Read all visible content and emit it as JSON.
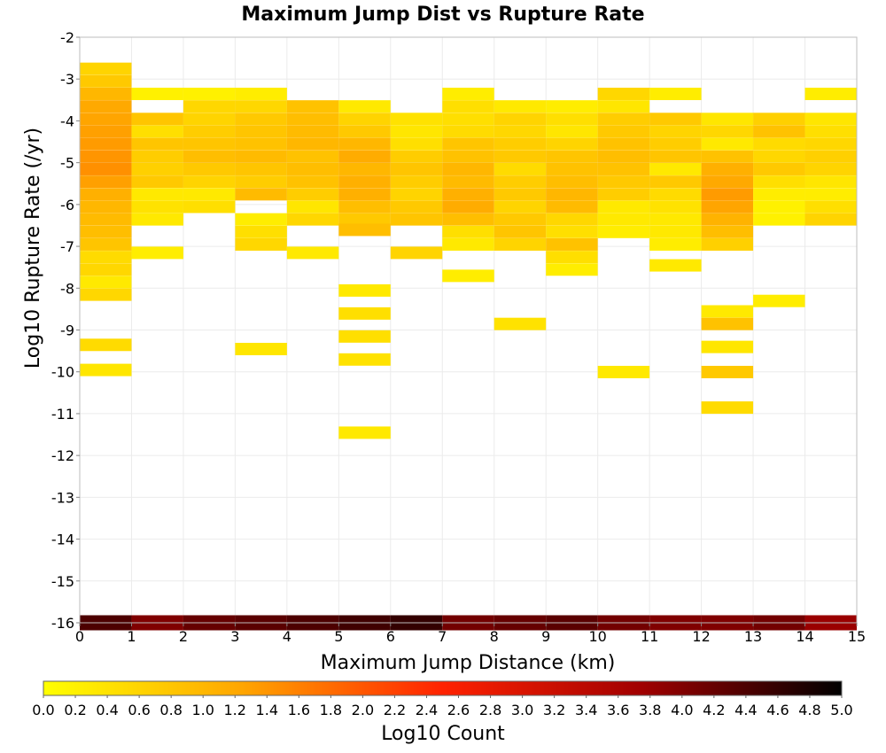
{
  "chart_data": {
    "type": "heatmap",
    "title": "Maximum Jump Dist vs Rupture Rate",
    "xlabel": "Maximum Jump Distance (km)",
    "ylabel": "Log10 Rupture Rate (/yr)",
    "xlim": [
      0,
      15
    ],
    "ylim": [
      -16,
      -2
    ],
    "x_ticks": [
      "0",
      "1",
      "2",
      "3",
      "4",
      "5",
      "6",
      "7",
      "8",
      "9",
      "10",
      "11",
      "12",
      "13",
      "14",
      "15"
    ],
    "y_ticks": [
      "-2",
      "-3",
      "-4",
      "-5",
      "-6",
      "-7",
      "-8",
      "-9",
      "-10",
      "-11",
      "-12",
      "-13",
      "-14",
      "-15",
      "-16"
    ],
    "grid": true,
    "colorbar": {
      "label": "Log10 Count",
      "min": 0.0,
      "max": 5.0,
      "ticks": [
        "0.0",
        "0.2",
        "0.4",
        "0.6",
        "0.8",
        "1.0",
        "1.2",
        "1.4",
        "1.6",
        "1.8",
        "2.0",
        "2.2",
        "2.4",
        "2.6",
        "2.8",
        "3.0",
        "3.2",
        "3.4",
        "3.6",
        "3.8",
        "4.0",
        "4.2",
        "4.4",
        "4.6",
        "4.8",
        "5.0"
      ],
      "stops": [
        "#ffff00",
        "#ffa500",
        "#ff2200",
        "#a00000",
        "#000000"
      ]
    },
    "x_bin_width": 1,
    "y_bin_height": 0.2857,
    "bins": [
      [
        0,
        -2.75,
        0.6
      ],
      [
        0,
        -3.05,
        0.75
      ],
      [
        0,
        -3.35,
        1.0
      ],
      [
        0,
        -3.65,
        1.2
      ],
      [
        0,
        -3.95,
        1.25
      ],
      [
        0,
        -4.25,
        1.3
      ],
      [
        0,
        -4.55,
        1.35
      ],
      [
        0,
        -4.85,
        1.4
      ],
      [
        0,
        -5.15,
        1.45
      ],
      [
        0,
        -5.45,
        1.3
      ],
      [
        0,
        -5.75,
        1.1
      ],
      [
        0,
        -6.05,
        1.0
      ],
      [
        0,
        -6.35,
        0.95
      ],
      [
        0,
        -6.65,
        0.9
      ],
      [
        0,
        -6.95,
        0.8
      ],
      [
        0,
        -7.25,
        0.5
      ],
      [
        0,
        -7.55,
        0.55
      ],
      [
        0,
        -7.85,
        0.3
      ],
      [
        0,
        -8.15,
        0.55
      ],
      [
        0,
        -9.35,
        0.5
      ],
      [
        0,
        -9.95,
        0.35
      ],
      [
        1,
        -3.35,
        0.2
      ],
      [
        1,
        -3.95,
        0.8
      ],
      [
        1,
        -4.25,
        0.45
      ],
      [
        1,
        -4.55,
        0.8
      ],
      [
        1,
        -4.85,
        0.7
      ],
      [
        1,
        -5.15,
        0.65
      ],
      [
        1,
        -5.45,
        0.75
      ],
      [
        1,
        -5.75,
        0.3
      ],
      [
        1,
        -6.05,
        0.4
      ],
      [
        1,
        -6.35,
        0.3
      ],
      [
        1,
        -7.15,
        0.25
      ],
      [
        2,
        -3.35,
        0.2
      ],
      [
        2,
        -3.65,
        0.55
      ],
      [
        2,
        -3.95,
        0.6
      ],
      [
        2,
        -4.25,
        0.7
      ],
      [
        2,
        -4.55,
        0.8
      ],
      [
        2,
        -4.85,
        0.9
      ],
      [
        2,
        -5.15,
        0.75
      ],
      [
        2,
        -5.45,
        0.6
      ],
      [
        2,
        -5.75,
        0.3
      ],
      [
        2,
        -6.05,
        0.45
      ],
      [
        3,
        -3.35,
        0.25
      ],
      [
        3,
        -3.65,
        0.55
      ],
      [
        3,
        -3.95,
        0.75
      ],
      [
        3,
        -4.25,
        0.8
      ],
      [
        3,
        -4.55,
        0.85
      ],
      [
        3,
        -4.85,
        0.95
      ],
      [
        3,
        -5.15,
        0.8
      ],
      [
        3,
        -5.45,
        0.7
      ],
      [
        3,
        -5.75,
        0.95
      ],
      [
        3,
        -6.35,
        0.25
      ],
      [
        3,
        -6.65,
        0.45
      ],
      [
        3,
        -6.95,
        0.55
      ],
      [
        3,
        -9.45,
        0.35
      ],
      [
        4,
        -3.65,
        0.85
      ],
      [
        4,
        -3.95,
        0.9
      ],
      [
        4,
        -4.25,
        0.95
      ],
      [
        4,
        -4.55,
        1.0
      ],
      [
        4,
        -4.85,
        0.85
      ],
      [
        4,
        -5.15,
        0.9
      ],
      [
        4,
        -5.45,
        0.85
      ],
      [
        4,
        -5.75,
        0.7
      ],
      [
        4,
        -6.05,
        0.35
      ],
      [
        4,
        -6.35,
        0.55
      ],
      [
        4,
        -7.15,
        0.3
      ],
      [
        5,
        -3.65,
        0.3
      ],
      [
        5,
        -3.95,
        0.6
      ],
      [
        5,
        -4.25,
        0.75
      ],
      [
        5,
        -4.55,
        1.0
      ],
      [
        5,
        -4.85,
        1.15
      ],
      [
        5,
        -5.15,
        1.0
      ],
      [
        5,
        -5.45,
        1.1
      ],
      [
        5,
        -5.75,
        1.1
      ],
      [
        5,
        -6.05,
        0.9
      ],
      [
        5,
        -6.35,
        0.75
      ],
      [
        5,
        -6.6,
        0.9
      ],
      [
        5,
        -8.05,
        0.3
      ],
      [
        5,
        -8.6,
        0.45
      ],
      [
        5,
        -9.15,
        0.45
      ],
      [
        5,
        -9.7,
        0.4
      ],
      [
        5,
        -11.45,
        0.3
      ],
      [
        6,
        -3.95,
        0.4
      ],
      [
        6,
        -4.25,
        0.35
      ],
      [
        6,
        -4.55,
        0.45
      ],
      [
        6,
        -4.85,
        0.7
      ],
      [
        6,
        -5.15,
        0.8
      ],
      [
        6,
        -5.45,
        0.7
      ],
      [
        6,
        -5.75,
        0.6
      ],
      [
        6,
        -6.05,
        0.75
      ],
      [
        6,
        -6.35,
        0.8
      ],
      [
        6,
        -7.15,
        0.6
      ],
      [
        7,
        -3.35,
        0.25
      ],
      [
        7,
        -3.65,
        0.45
      ],
      [
        7,
        -3.95,
        0.45
      ],
      [
        7,
        -4.25,
        0.5
      ],
      [
        7,
        -4.55,
        0.8
      ],
      [
        7,
        -4.85,
        0.85
      ],
      [
        7,
        -5.15,
        1.0
      ],
      [
        7,
        -5.45,
        0.95
      ],
      [
        7,
        -5.75,
        1.1
      ],
      [
        7,
        -6.05,
        1.15
      ],
      [
        7,
        -6.35,
        0.9
      ],
      [
        7,
        -6.65,
        0.45
      ],
      [
        7,
        -6.95,
        0.3
      ],
      [
        7,
        -7.7,
        0.25
      ],
      [
        8,
        -3.65,
        0.3
      ],
      [
        8,
        -3.95,
        0.6
      ],
      [
        8,
        -4.25,
        0.55
      ],
      [
        8,
        -4.55,
        0.7
      ],
      [
        8,
        -4.85,
        0.75
      ],
      [
        8,
        -5.15,
        0.5
      ],
      [
        8,
        -5.45,
        0.7
      ],
      [
        8,
        -5.75,
        0.75
      ],
      [
        8,
        -6.05,
        0.6
      ],
      [
        8,
        -6.35,
        0.75
      ],
      [
        8,
        -6.65,
        0.8
      ],
      [
        8,
        -6.95,
        0.6
      ],
      [
        8,
        -8.85,
        0.4
      ],
      [
        9,
        -3.65,
        0.25
      ],
      [
        9,
        -3.95,
        0.45
      ],
      [
        9,
        -4.25,
        0.35
      ],
      [
        9,
        -4.55,
        0.6
      ],
      [
        9,
        -4.85,
        0.8
      ],
      [
        9,
        -5.15,
        0.85
      ],
      [
        9,
        -5.45,
        0.9
      ],
      [
        9,
        -5.75,
        1.0
      ],
      [
        9,
        -6.05,
        0.95
      ],
      [
        9,
        -6.35,
        0.55
      ],
      [
        9,
        -6.65,
        0.45
      ],
      [
        9,
        -6.95,
        0.85
      ],
      [
        9,
        -7.25,
        0.45
      ],
      [
        9,
        -7.55,
        0.25
      ],
      [
        10,
        -3.35,
        0.55
      ],
      [
        10,
        -3.65,
        0.35
      ],
      [
        10,
        -3.95,
        0.7
      ],
      [
        10,
        -4.25,
        0.75
      ],
      [
        10,
        -4.55,
        0.85
      ],
      [
        10,
        -4.85,
        0.9
      ],
      [
        10,
        -5.15,
        0.85
      ],
      [
        10,
        -5.45,
        0.75
      ],
      [
        10,
        -5.75,
        0.7
      ],
      [
        10,
        -6.05,
        0.3
      ],
      [
        10,
        -6.35,
        0.3
      ],
      [
        10,
        -6.65,
        0.25
      ],
      [
        10,
        -10.0,
        0.3
      ],
      [
        11,
        -3.35,
        0.25
      ],
      [
        11,
        -3.95,
        0.75
      ],
      [
        11,
        -4.25,
        0.6
      ],
      [
        11,
        -4.55,
        0.7
      ],
      [
        11,
        -4.85,
        0.8
      ],
      [
        11,
        -5.15,
        0.3
      ],
      [
        11,
        -5.45,
        0.75
      ],
      [
        11,
        -5.75,
        0.5
      ],
      [
        11,
        -6.05,
        0.4
      ],
      [
        11,
        -6.35,
        0.3
      ],
      [
        11,
        -6.65,
        0.3
      ],
      [
        11,
        -6.95,
        0.25
      ],
      [
        11,
        -7.45,
        0.3
      ],
      [
        12,
        -3.95,
        0.35
      ],
      [
        12,
        -4.25,
        0.55
      ],
      [
        12,
        -4.55,
        0.3
      ],
      [
        12,
        -4.85,
        0.85
      ],
      [
        12,
        -5.15,
        1.1
      ],
      [
        12,
        -5.45,
        1.2
      ],
      [
        12,
        -5.75,
        1.35
      ],
      [
        12,
        -6.05,
        1.25
      ],
      [
        12,
        -6.35,
        1.05
      ],
      [
        12,
        -6.65,
        0.9
      ],
      [
        12,
        -6.95,
        0.65
      ],
      [
        12,
        -8.55,
        0.3
      ],
      [
        12,
        -8.85,
        0.85
      ],
      [
        12,
        -9.4,
        0.35
      ],
      [
        12,
        -10.0,
        0.75
      ],
      [
        12,
        -10.85,
        0.5
      ],
      [
        13,
        -3.95,
        0.65
      ],
      [
        13,
        -4.25,
        0.85
      ],
      [
        13,
        -4.55,
        0.5
      ],
      [
        13,
        -4.85,
        0.55
      ],
      [
        13,
        -5.15,
        0.75
      ],
      [
        13,
        -5.45,
        0.45
      ],
      [
        13,
        -5.75,
        0.25
      ],
      [
        13,
        -6.05,
        0.2
      ],
      [
        13,
        -6.35,
        0.2
      ],
      [
        13,
        -8.3,
        0.25
      ],
      [
        14,
        -3.35,
        0.25
      ],
      [
        14,
        -3.95,
        0.35
      ],
      [
        14,
        -4.25,
        0.45
      ],
      [
        14,
        -4.55,
        0.55
      ],
      [
        14,
        -4.85,
        0.65
      ],
      [
        14,
        -5.15,
        0.6
      ],
      [
        14,
        -5.45,
        0.35
      ],
      [
        14,
        -5.75,
        0.25
      ],
      [
        14,
        -6.05,
        0.45
      ],
      [
        14,
        -6.35,
        0.6
      ]
    ],
    "bottom_row": {
      "y": -16,
      "values": [
        4.4,
        4.0,
        4.2,
        4.3,
        4.4,
        4.5,
        4.6,
        4.1,
        4.2,
        4.3,
        4.1,
        4.0,
        4.0,
        4.1,
        3.8
      ]
    }
  }
}
